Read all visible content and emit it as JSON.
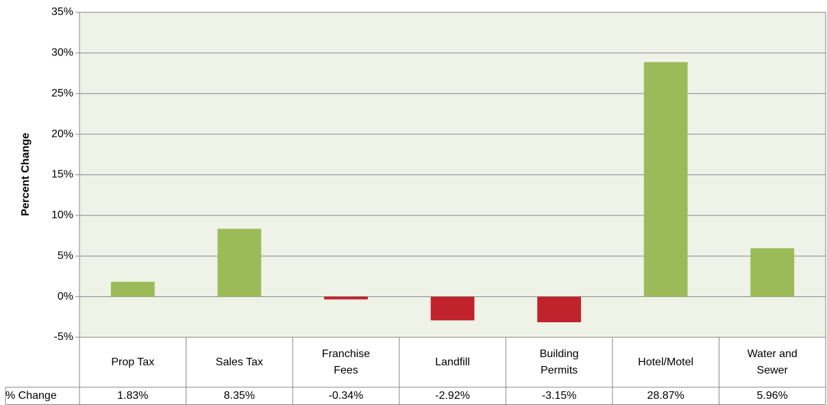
{
  "chart_data": {
    "type": "bar",
    "y_axis_label": "Percent Change",
    "categories": [
      "Prop Tax",
      "Sales Tax",
      "Franchise Fees",
      "Landfill",
      "Building Permits",
      "Hotel/Motel",
      "Water and Sewer"
    ],
    "series": [
      {
        "name": "% Change",
        "values": [
          1.83,
          8.35,
          -0.34,
          -2.92,
          -3.15,
          28.87,
          5.96
        ],
        "value_labels": [
          "1.83%",
          "8.35%",
          "-0.34%",
          "-2.92%",
          "-3.15%",
          "28.87%",
          "5.96%"
        ]
      }
    ],
    "positive_color": "#9bbb59",
    "negative_color": "#c0232c",
    "ylim": [
      -5,
      35
    ],
    "yticks": [
      {
        "value": -5,
        "label": "-5%"
      },
      {
        "value": 0,
        "label": "0%"
      },
      {
        "value": 5,
        "label": "5%"
      },
      {
        "value": 10,
        "label": "10%"
      },
      {
        "value": 15,
        "label": "15%"
      },
      {
        "value": 20,
        "label": "20%"
      },
      {
        "value": 25,
        "label": "25%"
      },
      {
        "value": 30,
        "label": "30%"
      },
      {
        "value": 35,
        "label": "35%"
      }
    ],
    "grid": true
  }
}
